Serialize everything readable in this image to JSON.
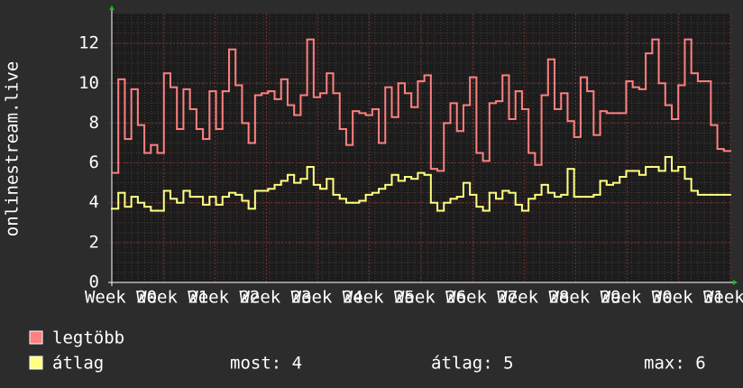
{
  "chart_data": {
    "type": "step",
    "y_label": "onlinestream.live",
    "x_labels": [
      "Week 20",
      "Week 21",
      "Week 22",
      "Week 23",
      "Week 24",
      "Week 25",
      "Week 26",
      "Week 27",
      "Week 28",
      "Week 29",
      "Week 30",
      "Week 31",
      "Week 32"
    ],
    "ylim": [
      0,
      13.5
    ],
    "yticks": [
      0,
      2,
      4,
      6,
      8,
      10,
      12
    ],
    "grid": true,
    "series": [
      {
        "name": "legtöbb",
        "color": "#ff8080",
        "values": [
          5.5,
          10.2,
          7.2,
          9.7,
          7.9,
          6.5,
          6.9,
          6.5,
          10.5,
          9.8,
          7.7,
          9.7,
          8.7,
          7.7,
          7.2,
          9.6,
          7.7,
          9.6,
          11.7,
          9.9,
          8.0,
          7.0,
          9.4,
          9.5,
          9.6,
          9.2,
          10.2,
          8.9,
          8.4,
          9.4,
          12.2,
          9.3,
          9.5,
          10.5,
          9.5,
          7.7,
          6.9,
          8.6,
          8.5,
          8.4,
          8.7,
          7.0,
          9.8,
          8.3,
          10.0,
          9.5,
          8.8,
          10.1,
          10.4,
          5.7,
          5.6,
          8.0,
          9.0,
          7.6,
          8.9,
          10.3,
          6.5,
          6.1,
          9.0,
          9.1,
          10.4,
          8.2,
          9.6,
          8.7,
          6.5,
          5.9,
          9.4,
          11.2,
          8.7,
          9.5,
          8.1,
          7.3,
          10.3,
          9.6,
          7.4,
          8.6,
          8.5,
          8.5,
          8.5,
          10.1,
          9.8,
          9.7,
          11.5,
          12.2,
          10.0,
          8.9,
          8.2,
          9.9,
          12.2,
          10.5,
          10.1,
          10.1,
          7.9,
          6.7,
          6.6
        ]
      },
      {
        "name": "átlag",
        "color": "#ffff80",
        "values": [
          3.7,
          4.5,
          3.8,
          4.3,
          4.0,
          3.8,
          3.6,
          3.6,
          4.6,
          4.2,
          4.0,
          4.6,
          4.3,
          4.3,
          3.9,
          4.3,
          3.9,
          4.3,
          4.5,
          4.4,
          4.1,
          3.7,
          4.6,
          4.6,
          4.7,
          4.9,
          5.1,
          5.4,
          5.0,
          5.2,
          5.8,
          4.9,
          4.7,
          5.2,
          4.4,
          4.2,
          4.0,
          4.0,
          4.1,
          4.4,
          4.5,
          4.7,
          4.9,
          5.4,
          5.1,
          5.3,
          5.2,
          5.5,
          5.4,
          4.0,
          3.6,
          4.0,
          4.2,
          4.3,
          5.0,
          4.4,
          3.8,
          3.6,
          4.5,
          4.2,
          4.6,
          4.5,
          3.9,
          3.6,
          4.2,
          4.4,
          4.9,
          4.5,
          4.3,
          4.4,
          5.7,
          4.3,
          4.3,
          4.3,
          4.4,
          5.1,
          4.9,
          5.0,
          5.3,
          5.6,
          5.6,
          5.4,
          5.8,
          5.8,
          5.6,
          6.3,
          5.6,
          5.8,
          5.2,
          4.6,
          4.4,
          4.4,
          4.4,
          4.4,
          4.4
        ]
      }
    ],
    "stats": [
      "most: 4",
      "átlag: 5",
      "max: 6"
    ]
  }
}
